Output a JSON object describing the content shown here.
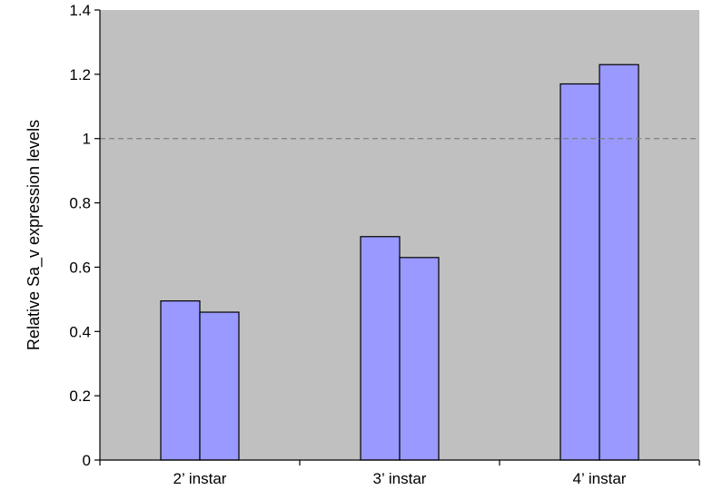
{
  "chart_data": {
    "type": "bar",
    "title": "",
    "xlabel": "",
    "ylabel": "Relative Sa_v expression levels",
    "categories": [
      "2’ instar",
      "3’ instar",
      "4’ instar"
    ],
    "series": [
      {
        "values": [
          0.495,
          0.695,
          1.17
        ]
      },
      {
        "values": [
          0.46,
          0.63,
          1.23
        ]
      }
    ],
    "ylim": [
      0,
      1.4
    ],
    "yticks": [
      "0",
      "0.2",
      "0.4",
      "0.6",
      "0.8",
      "1",
      "1.2",
      "1.4"
    ],
    "reference_line": {
      "y": 1,
      "style": "dashed"
    },
    "grid": false,
    "legend": "none",
    "colors": {
      "plot_background": "#c0c0c0",
      "bar_fill": "#9999ff",
      "bar_stroke": "#000000",
      "reference_line": "#808080"
    }
  }
}
